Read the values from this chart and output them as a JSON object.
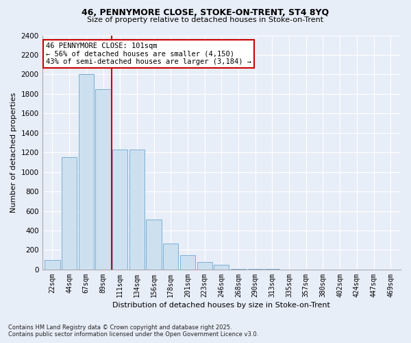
{
  "title1": "46, PENNYMORE CLOSE, STOKE-ON-TRENT, ST4 8YQ",
  "title2": "Size of property relative to detached houses in Stoke-on-Trent",
  "xlabel": "Distribution of detached houses by size in Stoke-on-Trent",
  "ylabel": "Number of detached properties",
  "categories": [
    "22sqm",
    "44sqm",
    "67sqm",
    "89sqm",
    "111sqm",
    "134sqm",
    "156sqm",
    "178sqm",
    "201sqm",
    "223sqm",
    "246sqm",
    "268sqm",
    "290sqm",
    "313sqm",
    "335sqm",
    "357sqm",
    "380sqm",
    "402sqm",
    "424sqm",
    "447sqm",
    "469sqm"
  ],
  "values": [
    100,
    1150,
    2000,
    1850,
    1230,
    1230,
    510,
    270,
    150,
    80,
    50,
    10,
    5,
    5,
    3,
    2,
    1,
    1,
    0,
    0,
    0
  ],
  "bar_color": "#cce0f0",
  "bar_edge_color": "#7bafd4",
  "vline_x": 3.5,
  "vline_color": "#cc0000",
  "annotation_title": "46 PENNYMORE CLOSE: 101sqm",
  "annotation_line1": "← 56% of detached houses are smaller (4,150)",
  "annotation_line2": "43% of semi-detached houses are larger (3,184) →",
  "annotation_box_facecolor": "#ffffff",
  "annotation_box_edgecolor": "#cc0000",
  "ylim": [
    0,
    2400
  ],
  "yticks": [
    0,
    200,
    400,
    600,
    800,
    1000,
    1200,
    1400,
    1600,
    1800,
    2000,
    2200,
    2400
  ],
  "footnote1": "Contains HM Land Registry data © Crown copyright and database right 2025.",
  "footnote2": "Contains public sector information licensed under the Open Government Licence v3.0.",
  "bg_color": "#e8eef8"
}
